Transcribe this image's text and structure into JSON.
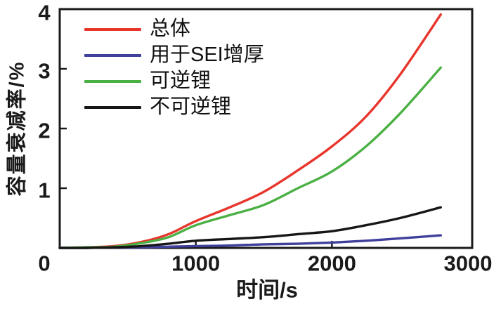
{
  "axes": {
    "y_label": "容量衰减率/%",
    "x_label": "时间/s",
    "frame_color": "#1a1a1a"
  },
  "chart_data": {
    "type": "line",
    "title": "",
    "xlabel": "时间/s",
    "ylabel": "容量衰减率/%",
    "xlim": [
      0,
      3000
    ],
    "ylim": [
      0,
      4
    ],
    "x_ticks": [
      0,
      1000,
      2000,
      3000
    ],
    "y_ticks": [
      0,
      1,
      2,
      3,
      4
    ],
    "grid": false,
    "legend_position": "top-left",
    "x": [
      0,
      200,
      400,
      600,
      800,
      1000,
      1250,
      1500,
      1750,
      2000,
      2250,
      2500,
      2800
    ],
    "series": [
      {
        "key": "total",
        "name": "总体",
        "color": "#e8352c",
        "values": [
          0,
          0.01,
          0.03,
          0.1,
          0.23,
          0.45,
          0.68,
          0.94,
          1.3,
          1.7,
          2.2,
          2.9,
          3.91
        ]
      },
      {
        "key": "sei",
        "name": "用于SEI增厚",
        "color": "#3f3f9c",
        "values": [
          0,
          0.0,
          0.01,
          0.01,
          0.02,
          0.03,
          0.04,
          0.06,
          0.07,
          0.09,
          0.12,
          0.16,
          0.21
        ]
      },
      {
        "key": "reversible",
        "name": "可逆锂",
        "color": "#4bb044",
        "values": [
          0,
          0.01,
          0.02,
          0.08,
          0.18,
          0.38,
          0.55,
          0.72,
          1.0,
          1.28,
          1.7,
          2.25,
          3.02
        ]
      },
      {
        "key": "irreversible",
        "name": "不可逆锂",
        "color": "#161616",
        "values": [
          0,
          0.0,
          0.01,
          0.03,
          0.07,
          0.12,
          0.15,
          0.18,
          0.23,
          0.28,
          0.38,
          0.5,
          0.68
        ]
      }
    ]
  }
}
